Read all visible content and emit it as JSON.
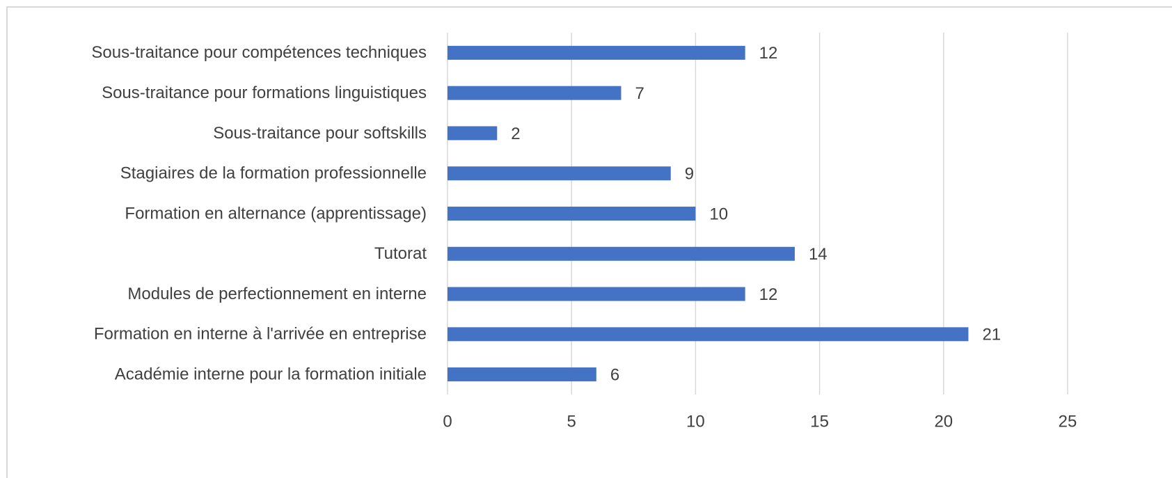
{
  "chart_data": {
    "type": "bar",
    "orientation": "horizontal",
    "categories": [
      "Sous-traitance pour compétences techniques",
      "Sous-traitance pour formations linguistiques",
      "Sous-traitance pour softskills",
      "Stagiaires de la formation professionnelle",
      "Formation en alternance (apprentissage)",
      "Tutorat",
      "Modules de perfectionnement en interne",
      "Formation en interne à l'arrivée en entreprise",
      "Académie interne pour la formation initiale"
    ],
    "values": [
      12,
      7,
      2,
      9,
      10,
      14,
      12,
      21,
      6
    ],
    "color": "#4472c4",
    "xlim": [
      0,
      25
    ],
    "xticks": [
      0,
      5,
      10,
      15,
      20,
      25
    ],
    "grid": true
  }
}
